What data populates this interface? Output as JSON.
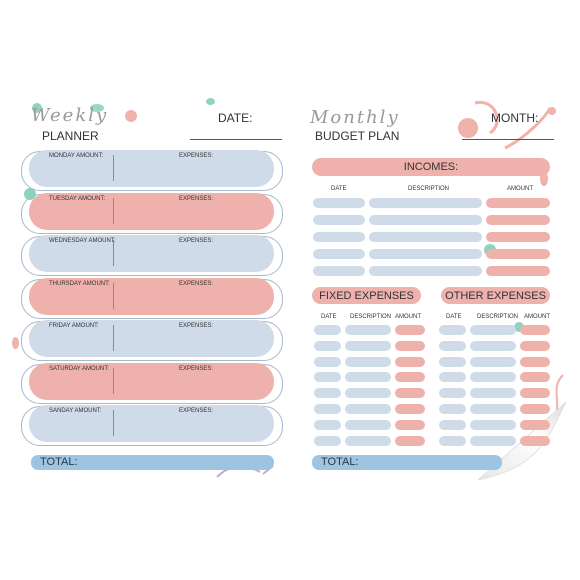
{
  "weekly": {
    "script_title": "Weekly",
    "title": "PLANNER",
    "date_label": "DATE:",
    "expenses_label": "EXPENSES:",
    "days": [
      {
        "label": "MONDAY AMOUNT:",
        "color": "#cfdbe9"
      },
      {
        "label": "TUESDAY AMOUNT:",
        "color": "#eeb1ab"
      },
      {
        "label": "WEDNESDAY AMOUNT:",
        "color": "#cfdbe9"
      },
      {
        "label": "THURSDAY AMOUNT:",
        "color": "#eeb1ab"
      },
      {
        "label": "FRIDAY AMOUNT:",
        "color": "#cfdbe9"
      },
      {
        "label": "SATURDAY AMOUNT:",
        "color": "#eeb1ab"
      },
      {
        "label": "SANDAY AMOUNT:",
        "color": "#cfdbe9"
      }
    ],
    "total_label": "TOTAL:"
  },
  "monthly": {
    "script_title": "Monthly",
    "title": "BUDGET PLAN",
    "month_label": "MONTH:",
    "incomes_label": "INCOMES:",
    "col_date": "DATE",
    "col_description": "DESCRIPTION",
    "col_amount": "AMOUNT",
    "fixed_label": "FIXED EXPENSES",
    "other_label": "OTHER EXPENSES",
    "total_label": "TOTAL:"
  },
  "colors": {
    "blue": "#cfdbe9",
    "pink": "#eeb1ab",
    "total": "#9dc4e1",
    "teal": "#8fd3bf",
    "purple": "#c5a9d8"
  }
}
